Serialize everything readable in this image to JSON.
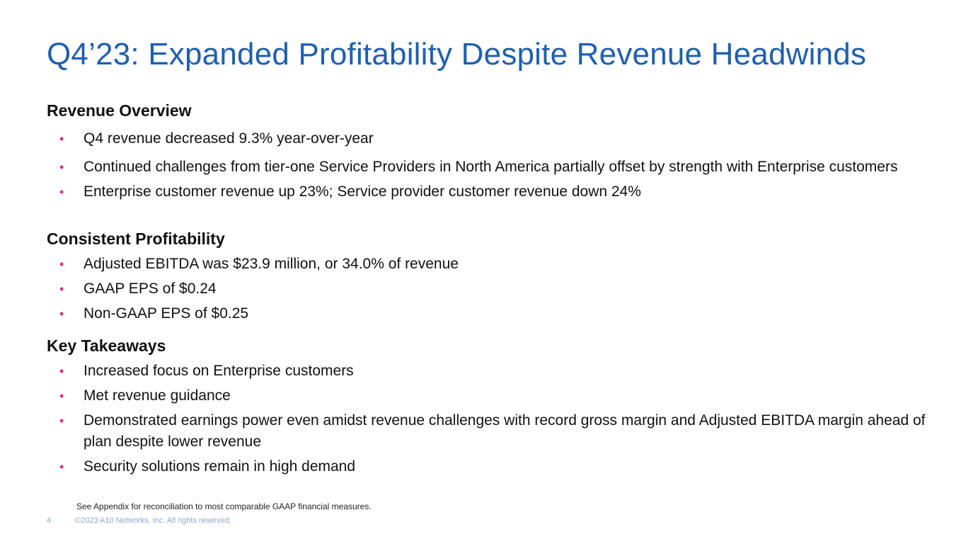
{
  "slide": {
    "title": "Q4’23: Expanded Profitability Despite Revenue Headwinds",
    "bullet_color": "#d6338a",
    "title_color": "#1f5fb0"
  },
  "sections": {
    "revenue": {
      "heading": "Revenue Overview",
      "bullets": [
        "Q4 revenue decreased 9.3% year-over-year",
        "Continued challenges from tier-one Service Providers in North America partially offset by strength with Enterprise customers",
        "Enterprise customer revenue up 23%; Service provider customer revenue down 24%"
      ]
    },
    "profitability": {
      "heading": "Consistent Profitability",
      "bullets": [
        "Adjusted EBITDA was $23.9 million, or 34.0% of revenue",
        "GAAP EPS of $0.24",
        "Non-GAAP EPS of $0.25"
      ]
    },
    "takeaways": {
      "heading": "Key Takeaways",
      "bullets": [
        "Increased focus on Enterprise customers",
        "Met revenue guidance",
        "Demonstrated earnings power even amidst revenue challenges with record gross margin and Adjusted EBITDA margin ahead of plan despite lower revenue",
        "Security solutions remain in high demand"
      ]
    }
  },
  "footer": {
    "footnote": "See Appendix for reconciliation to most comparable GAAP financial measures.",
    "page_number": "4",
    "copyright": "©2023 A10 Networks, Inc. All rights reserved."
  }
}
